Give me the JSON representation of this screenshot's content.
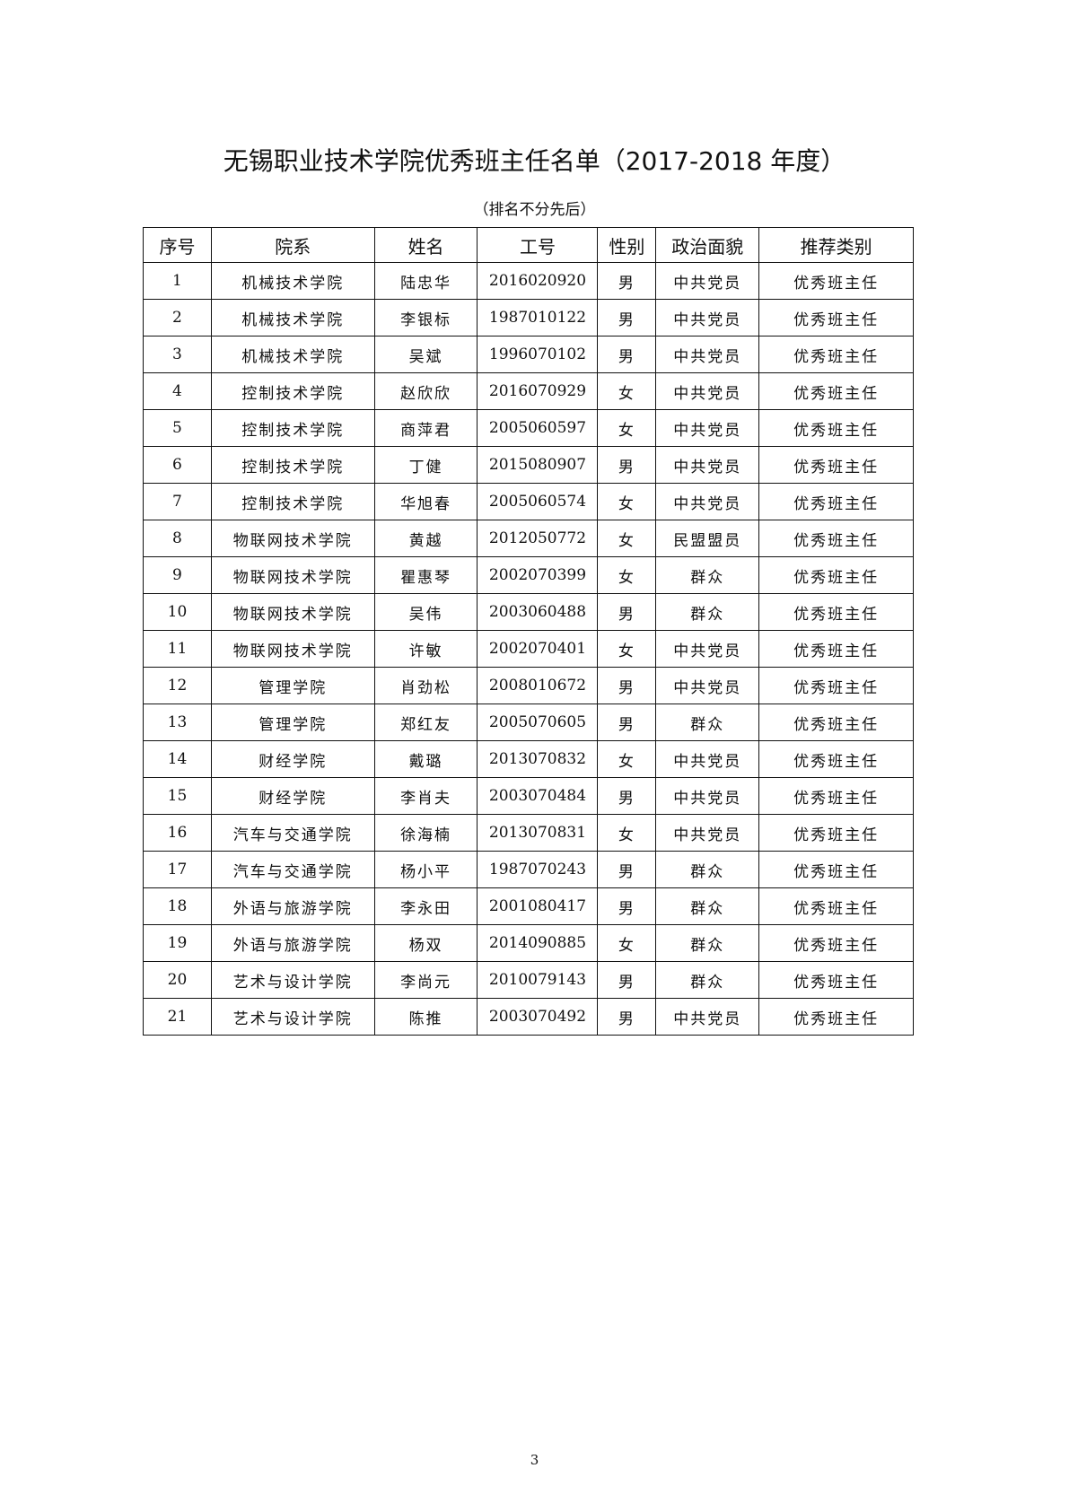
{
  "title": "无锡职业技术学院优秀班主任名单（2017-2018 年度）",
  "subtitle": "（排名不分先后）",
  "columns": [
    "序号",
    "院系",
    "姓名",
    "工号",
    "性别",
    "政治面貌",
    "推荐类别"
  ],
  "rows": [
    [
      "1",
      "机械技术学院",
      "陆忠华",
      "2016020920",
      "男",
      "中共党员",
      "优秀班主任"
    ],
    [
      "2",
      "机械技术学院",
      "李银标",
      "1987010122",
      "男",
      "中共党员",
      "优秀班主任"
    ],
    [
      "3",
      "机械技术学院",
      "吴斌",
      "1996070102",
      "男",
      "中共党员",
      "优秀班主任"
    ],
    [
      "4",
      "控制技术学院",
      "赵欣欣",
      "2016070929",
      "女",
      "中共党员",
      "优秀班主任"
    ],
    [
      "5",
      "控制技术学院",
      "商萍君",
      "2005060597",
      "女",
      "中共党员",
      "优秀班主任"
    ],
    [
      "6",
      "控制技术学院",
      "丁健",
      "2015080907",
      "男",
      "中共党员",
      "优秀班主任"
    ],
    [
      "7",
      "控制技术学院",
      "华旭春",
      "2005060574",
      "女",
      "中共党员",
      "优秀班主任"
    ],
    [
      "8",
      "物联网技术学院",
      "黄越",
      "2012050772",
      "女",
      "民盟盟员",
      "优秀班主任"
    ],
    [
      "9",
      "物联网技术学院",
      "瞿惠琴",
      "2002070399",
      "女",
      "群众",
      "优秀班主任"
    ],
    [
      "10",
      "物联网技术学院",
      "吴伟",
      "2003060488",
      "男",
      "群众",
      "优秀班主任"
    ],
    [
      "11",
      "物联网技术学院",
      "许敏",
      "2002070401",
      "女",
      "中共党员",
      "优秀班主任"
    ],
    [
      "12",
      "管理学院",
      "肖劲松",
      "2008010672",
      "男",
      "中共党员",
      "优秀班主任"
    ],
    [
      "13",
      "管理学院",
      "郑红友",
      "2005070605",
      "男",
      "群众",
      "优秀班主任"
    ],
    [
      "14",
      "财经学院",
      "戴璐",
      "2013070832",
      "女",
      "中共党员",
      "优秀班主任"
    ],
    [
      "15",
      "财经学院",
      "李肖夫",
      "2003070484",
      "男",
      "中共党员",
      "优秀班主任"
    ],
    [
      "16",
      "汽车与交通学院",
      "徐海楠",
      "2013070831",
      "女",
      "中共党员",
      "优秀班主任"
    ],
    [
      "17",
      "汽车与交通学院",
      "杨小平",
      "1987070243",
      "男",
      "群众",
      "优秀班主任"
    ],
    [
      "18",
      "外语与旅游学院",
      "李永田",
      "2001080417",
      "男",
      "群众",
      "优秀班主任"
    ],
    [
      "19",
      "外语与旅游学院",
      "杨双",
      "2014090885",
      "女",
      "群众",
      "优秀班主任"
    ],
    [
      "20",
      "艺术与设计学院",
      "李尚元",
      "2010079143",
      "男",
      "群众",
      "优秀班主任"
    ],
    [
      "21",
      "艺术与设计学院",
      "陈推",
      "2003070492",
      "男",
      "中共党员",
      "优秀班主任"
    ]
  ],
  "page_number": "3"
}
